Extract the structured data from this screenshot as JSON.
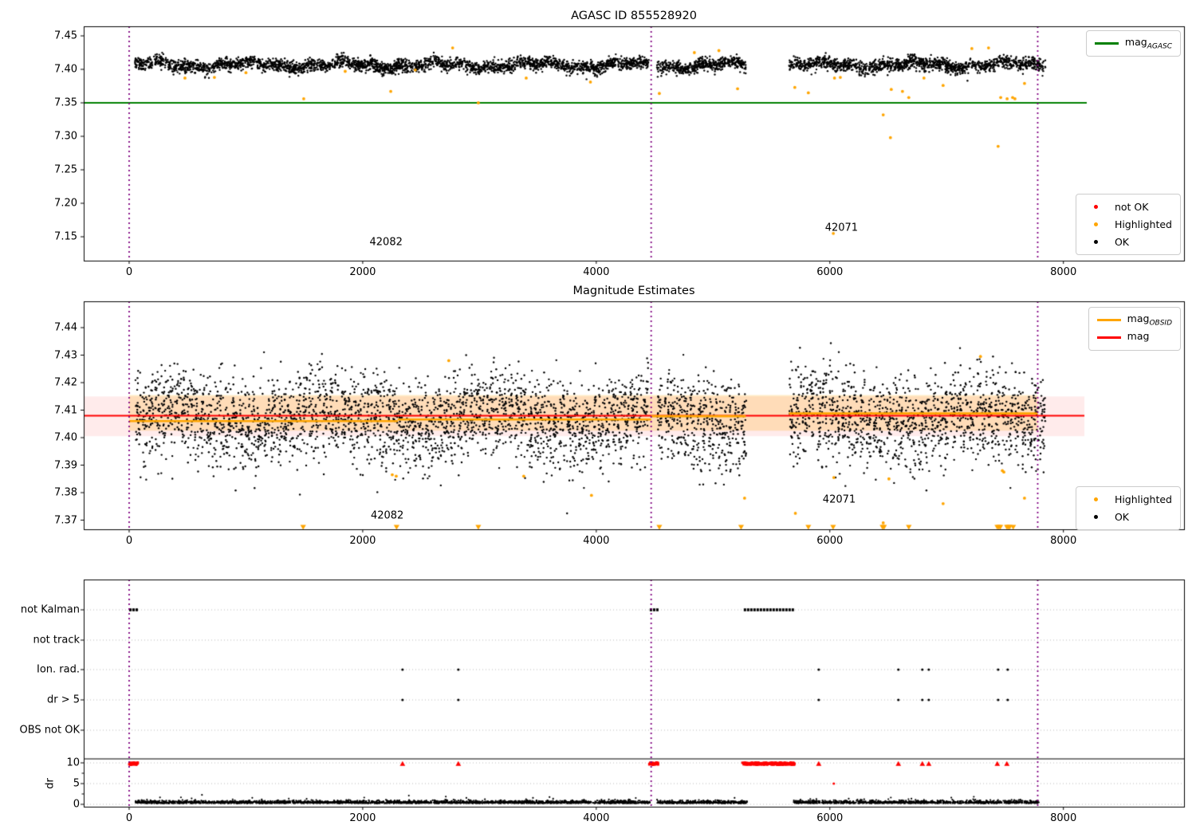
{
  "colors": {
    "black": "#000000",
    "red": "#ff0000",
    "orange": "#ffa500",
    "green": "#008000",
    "purple": "#800080",
    "grid": "#bbbbbb",
    "red_band": "rgba(255,0,0,0.08)",
    "orange_band": "rgba(255,165,0,0.22)"
  },
  "legends": {
    "agasc": {
      "main": "mag",
      "sub": "AGASC",
      "color": "#008000"
    },
    "flags1": {
      "items": [
        {
          "label": "not OK",
          "color": "#ff0000"
        },
        {
          "label": "Highlighted",
          "color": "#ffa500"
        },
        {
          "label": "OK",
          "color": "#000000"
        }
      ]
    },
    "obsid": {
      "rows": [
        {
          "main": "mag",
          "sub": "OBSID",
          "color": "#ffa500"
        },
        {
          "main": "mag",
          "sub": "",
          "color": "#ff0000"
        }
      ]
    },
    "flags2": {
      "items": [
        {
          "label": "Highlighted",
          "color": "#ffa500"
        },
        {
          "label": "OK",
          "color": "#000000"
        }
      ]
    }
  },
  "chart_data": [
    {
      "id": "agasc_mag",
      "type": "scatter",
      "title": "AGASC ID 855528920",
      "xlim": [
        -389,
        9033
      ],
      "ylim": [
        7.114,
        7.464
      ],
      "xticks": [
        0,
        2000,
        4000,
        6000,
        8000
      ],
      "yticks": [
        7.45,
        7.4,
        7.35,
        7.3,
        7.25,
        7.2,
        7.15
      ],
      "hline_mag_agasc": {
        "y": 7.35,
        "x_start": -389,
        "x_end": 8200
      },
      "vlines": [
        0,
        4470,
        7780
      ],
      "ok_band": {
        "segments": [
          [
            50,
            4450
          ],
          [
            4520,
            5280
          ],
          [
            5650,
            7850
          ]
        ],
        "center": 7.4065,
        "spread": 0.008
      },
      "highlighted_points": [
        [
          478,
          7.387
        ],
        [
          730,
          7.388
        ],
        [
          1000,
          7.395
        ],
        [
          1495,
          7.356
        ],
        [
          1850,
          7.397
        ],
        [
          2240,
          7.367
        ],
        [
          2450,
          7.399
        ],
        [
          2770,
          7.432
        ],
        [
          2990,
          7.35
        ],
        [
          3400,
          7.387
        ],
        [
          3950,
          7.381
        ],
        [
          4540,
          7.364
        ],
        [
          4840,
          7.425
        ],
        [
          5050,
          7.428
        ],
        [
          5210,
          7.371
        ],
        [
          5700,
          7.373
        ],
        [
          5816,
          7.365
        ],
        [
          6030,
          7.155
        ],
        [
          6040,
          7.387
        ],
        [
          6090,
          7.388
        ],
        [
          6457,
          7.332
        ],
        [
          6519,
          7.298
        ],
        [
          6526,
          7.37
        ],
        [
          6622,
          7.367
        ],
        [
          6676,
          7.358
        ],
        [
          6806,
          7.387
        ],
        [
          6970,
          7.376
        ],
        [
          7216,
          7.431
        ],
        [
          7359,
          7.432
        ],
        [
          7441,
          7.285
        ],
        [
          7463,
          7.358
        ],
        [
          7518,
          7.356
        ],
        [
          7565,
          7.358
        ],
        [
          7585,
          7.356
        ],
        [
          7667,
          7.379
        ]
      ],
      "annotations": [
        {
          "label": "42082",
          "x": 2200,
          "y": 7.142
        },
        {
          "label": "42071",
          "x": 6100,
          "y": 7.163
        }
      ]
    },
    {
      "id": "mag_estimates",
      "type": "scatter",
      "title": "Magnitude Estimates",
      "xlim": [
        -389,
        9033
      ],
      "ylim": [
        7.3667,
        7.4496
      ],
      "xticks": [
        0,
        2000,
        4000,
        6000,
        8000
      ],
      "yticks": [
        7.44,
        7.43,
        7.42,
        7.41,
        7.4,
        7.39,
        7.38,
        7.37
      ],
      "mag_line": {
        "y": 7.408,
        "band": [
          7.4005,
          7.415
        ],
        "x_start": -389,
        "x_end": 8180
      },
      "obsid_line": {
        "band": [
          7.4025,
          7.4155
        ],
        "band_x": [
          0,
          7780
        ],
        "segments": [
          {
            "x": [
              0,
              2300
            ],
            "y": 7.406
          },
          {
            "x": [
              2300,
              4470
            ],
            "y": 7.4066
          },
          {
            "x": [
              4470,
              5280
            ],
            "y": 7.4078
          },
          {
            "x": [
              5650,
              7780
            ],
            "y": 7.4088
          }
        ]
      },
      "vlines": [
        0,
        4470,
        7780
      ],
      "ok_band": {
        "segments": [
          [
            50,
            4450
          ],
          [
            4520,
            5280
          ],
          [
            5650,
            7850
          ]
        ],
        "center": 7.4072,
        "spread": 0.011
      },
      "highlighted_points": [
        [
          2253,
          7.3865
        ],
        [
          2287,
          7.386
        ],
        [
          2737,
          7.428
        ],
        [
          3379,
          7.386
        ],
        [
          3959,
          7.379
        ],
        [
          5270,
          7.378
        ],
        [
          5705,
          7.3725
        ],
        [
          6034,
          7.3855
        ],
        [
          6457,
          7.369
        ],
        [
          6506,
          7.385
        ],
        [
          6970,
          7.376
        ],
        [
          7290,
          7.4295
        ],
        [
          7477,
          7.388
        ],
        [
          7490,
          7.3875
        ],
        [
          7667,
          7.378
        ]
      ],
      "clipped_low_markers": {
        "y": 7.3655,
        "x": [
          1490,
          2290,
          2990,
          4540,
          5240,
          5816,
          6028,
          6451,
          6464,
          6676,
          7434,
          7447,
          7460,
          7516,
          7528,
          7540,
          7570
        ]
      },
      "annotations": [
        {
          "label": "42082",
          "x": 2210,
          "y": 7.3715
        },
        {
          "label": "42071",
          "x": 6080,
          "y": 7.3775
        }
      ]
    },
    {
      "id": "flags",
      "type": "event-rows",
      "rows": [
        "not Kalman",
        "not track",
        "Ion. rad.",
        "dr > 5",
        "OBS not OK"
      ],
      "row_events": {
        "not Kalman": {
          "segments": [
            [
              0,
              70
            ],
            [
              4458,
              4520
            ],
            [
              5263,
              5686
            ]
          ],
          "points": []
        },
        "not track": {
          "segments": [],
          "points": []
        },
        "Ion. rad.": {
          "segments": [],
          "points": [
            2341,
            2819,
            5905,
            6587,
            6792,
            6847,
            7441,
            7523
          ]
        },
        "dr > 5": {
          "segments": [],
          "points": [
            2341,
            2819,
            5905,
            6587,
            6792,
            6847,
            7441,
            7523
          ]
        },
        "OBS not OK": {
          "segments": [],
          "points": []
        }
      },
      "dr_axis": {
        "label": "dr",
        "ticks": [
          10,
          5,
          0
        ],
        "ok_band": {
          "segments": [
            [
              55,
              4460
            ],
            [
              4520,
              5290
            ],
            [
              5690,
              7790
            ]
          ],
          "center": 0.5,
          "spread": 0.45
        },
        "bad_segments": [
          [
            0,
            75
          ],
          [
            4450,
            4530
          ],
          [
            5250,
            5700
          ]
        ],
        "bad_points": [
          2341,
          2819,
          5905,
          6587,
          6792,
          6847,
          7434,
          7516
        ],
        "bad_value": 9.8,
        "extra_bad_point": {
          "x": 6034,
          "dr": 5
        }
      },
      "xticks": [
        0,
        2000,
        4000,
        6000,
        8000
      ],
      "vlines": [
        0,
        4470,
        7780
      ]
    }
  ]
}
